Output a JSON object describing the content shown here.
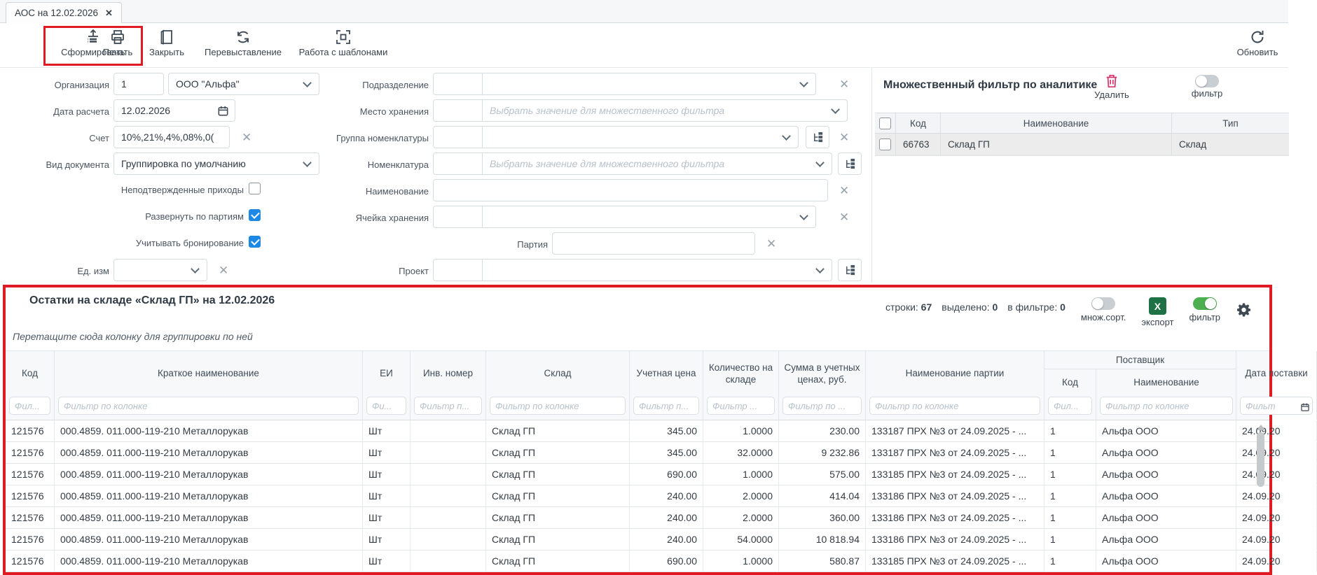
{
  "tab": {
    "title": "АОС на 12.02.2026",
    "close": "✕"
  },
  "toolbar": {
    "generate": "Сформировать",
    "print": "Печать",
    "close": "Закрыть",
    "reissue": "Перевыставление",
    "templates": "Работа с шаблонами",
    "refresh": "Обновить"
  },
  "form": {
    "org_label": "Организация",
    "org_code": "1",
    "org_name": "ООО \"Альфа\"",
    "date_label": "Дата расчета",
    "date_value": "12.02.2026",
    "account_label": "Счет",
    "account_value": "10%,21%,4%,08%,0(",
    "doctype_label": "Вид документа",
    "doctype_value": "Группировка по умолчанию",
    "unconfirmed_label": "Неподтвержденные приходы",
    "unconfirmed_checked": false,
    "expand_batches_label": "Развернуть по партиям",
    "expand_batches_checked": true,
    "reserve_label": "Учитывать бронирование",
    "reserve_checked": true,
    "unit_label": "Ед. изм",
    "department_label": "Подразделение",
    "storage_label": "Место хранения",
    "storage_placeholder": "Выбрать значение для множественного фильтра",
    "nomgroup_label": "Группа номенклатуры",
    "nomenclature_label": "Номенклатура",
    "nomenclature_placeholder": "Выбрать значение для множественного фильтра",
    "name_label": "Наименование",
    "cell_label": "Ячейка хранения",
    "batch_label": "Партия",
    "project_label": "Проект"
  },
  "analytics_filter": {
    "title": "Множественный фильтр по аналитике",
    "delete_label": "Удалить",
    "filter_toggle_label": "фильтр",
    "filter_on": false,
    "columns": {
      "code": "Код",
      "name": "Наименование",
      "type": "Тип"
    },
    "rows": [
      {
        "code": "66763",
        "name": "Склад ГП",
        "type": "Склад"
      }
    ]
  },
  "stock_panel": {
    "title": "Остатки на складе «Склад ГП» на 12.02.2026",
    "stats": {
      "rows_label": "строки:",
      "rows": "67",
      "selected_label": "выделено:",
      "selected": "0",
      "filtered_label": "в фильтре:",
      "filtered": "0"
    },
    "multisort_label": "множ.сорт.",
    "multisort_on": false,
    "export_label": "экспорт",
    "export_icon_letter": "X",
    "filter_label": "фильтр",
    "filter_on": true,
    "groupby_hint": "Перетащите сюда колонку для группировки по ней",
    "supplier_group": "Поставщик",
    "columns": [
      {
        "label": "Код",
        "filter": "Фил..."
      },
      {
        "label": "Краткое наименование",
        "filter": "Фильтр по колонке"
      },
      {
        "label": "ЕИ",
        "filter": "Фи..."
      },
      {
        "label": "Инв. номер",
        "filter": "Фильтр п..."
      },
      {
        "label": "Склад",
        "filter": "Фильтр по колонке"
      },
      {
        "label": "Учетная цена",
        "filter": "Фильтр п...",
        "align": "right"
      },
      {
        "label": "Количество на складе",
        "filter": "Фильтр ...",
        "align": "right"
      },
      {
        "label": "Сумма в учетных ценах, руб.",
        "filter": "Фильтр по ...",
        "align": "right"
      },
      {
        "label": "Наименование партии",
        "filter": "Фильтр по колонке"
      },
      {
        "label": "Код",
        "filter": "Фил...",
        "group": "Поставщик"
      },
      {
        "label": "Наименование",
        "filter": "Фильтр по колонке",
        "group": "Поставщик"
      },
      {
        "label": "Дата поставки",
        "filter": "Фильт",
        "calendar": true
      }
    ],
    "rows": [
      [
        "121576",
        "000.4859. 011.000-119-210 Металлорукав",
        "Шт",
        "",
        "Склад ГП",
        "345.00",
        "1.0000",
        "230.00",
        "133187 ПРХ №3 от 24.09.2025 - ...",
        "1",
        "Альфа ООО",
        "24.09.20"
      ],
      [
        "121576",
        "000.4859. 011.000-119-210 Металлорукав",
        "Шт",
        "",
        "Склад ГП",
        "345.00",
        "32.0000",
        "9 232.86",
        "133187 ПРХ №3 от 24.09.2025 - ...",
        "1",
        "Альфа ООО",
        "24.09.20"
      ],
      [
        "121576",
        "000.4859. 011.000-119-210 Металлорукав",
        "Шт",
        "",
        "Склад ГП",
        "690.00",
        "1.0000",
        "575.00",
        "133185 ПРХ №3 от 24.09.2025 - ...",
        "1",
        "Альфа ООО",
        "24.09.20"
      ],
      [
        "121576",
        "000.4859. 011.000-119-210 Металлорукав",
        "Шт",
        "",
        "Склад ГП",
        "240.00",
        "2.0000",
        "414.04",
        "133186 ПРХ №3 от 24.09.2025 - ...",
        "1",
        "Альфа ООО",
        "24.09.20"
      ],
      [
        "121576",
        "000.4859. 011.000-119-210 Металлорукав",
        "Шт",
        "",
        "Склад ГП",
        "240.00",
        "2.0000",
        "360.00",
        "133186 ПРХ №3 от 24.09.2025 - ...",
        "1",
        "Альфа ООО",
        "24.09.20"
      ],
      [
        "121576",
        "000.4859. 011.000-119-210 Металлорукав",
        "Шт",
        "",
        "Склад ГП",
        "240.00",
        "54.0000",
        "10 818.94",
        "133186 ПРХ №3 от 24.09.2025 - ...",
        "1",
        "Альфа ООО",
        "24.09.20"
      ],
      [
        "121576",
        "000.4859. 011.000-119-210 Металлорукав",
        "Шт",
        "",
        "Склад ГП",
        "690.00",
        "1.0000",
        "580.87",
        "133185 ПРХ №3 от 24.09.2025 - ...",
        "1",
        "Альфа ООО",
        "24.09.20"
      ]
    ]
  },
  "colors": {
    "highlight_red": "#e01b24",
    "toggle_on_green": "#4caf50",
    "checkbox_blue": "#1e88e5",
    "excel_green": "#1e7145",
    "delete_red": "#d6336c"
  }
}
